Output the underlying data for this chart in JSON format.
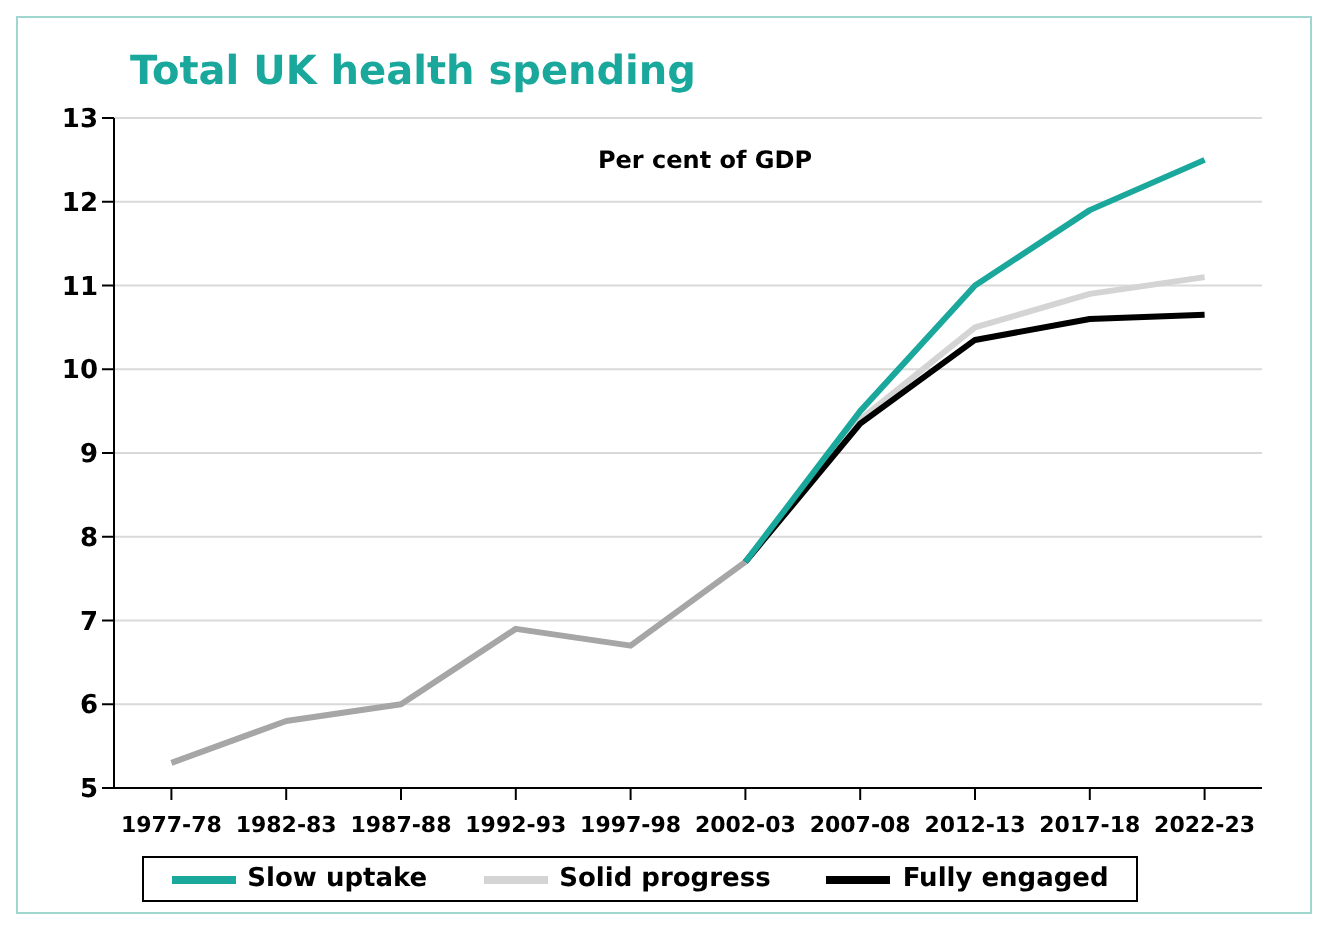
{
  "chart_data": {
    "type": "line",
    "title": "Total UK health spending",
    "annotations": [
      "Per cent of GDP"
    ],
    "categories": [
      "1977-78",
      "1982-83",
      "1987-88",
      "1992-93",
      "1997-98",
      "2002-03",
      "2007-08",
      "2012-13",
      "2017-18",
      "2022-23"
    ],
    "series": [
      {
        "color": "#a6a6a6",
        "values": [
          5.3,
          5.8,
          6.0,
          6.9,
          6.7,
          7.7,
          null,
          null,
          null,
          null
        ]
      },
      {
        "name": "Solid progress",
        "color": "#d4d4d4",
        "values": [
          null,
          null,
          null,
          null,
          null,
          7.7,
          9.4,
          10.5,
          10.9,
          11.1
        ]
      },
      {
        "name": "Fully engaged",
        "color": "#000000",
        "values": [
          null,
          null,
          null,
          null,
          null,
          7.7,
          9.35,
          10.35,
          10.6,
          10.65
        ]
      },
      {
        "name": "Slow uptake",
        "color": "#1aa89c",
        "values": [
          null,
          null,
          null,
          null,
          null,
          7.7,
          9.5,
          11.0,
          11.9,
          12.5
        ]
      }
    ],
    "ylim": [
      5,
      13
    ],
    "yticks": [
      5,
      6,
      7,
      8,
      9,
      10,
      11,
      12,
      13
    ],
    "grid": "y",
    "legend": "bottom",
    "marker": "none",
    "line_style": "solid"
  }
}
